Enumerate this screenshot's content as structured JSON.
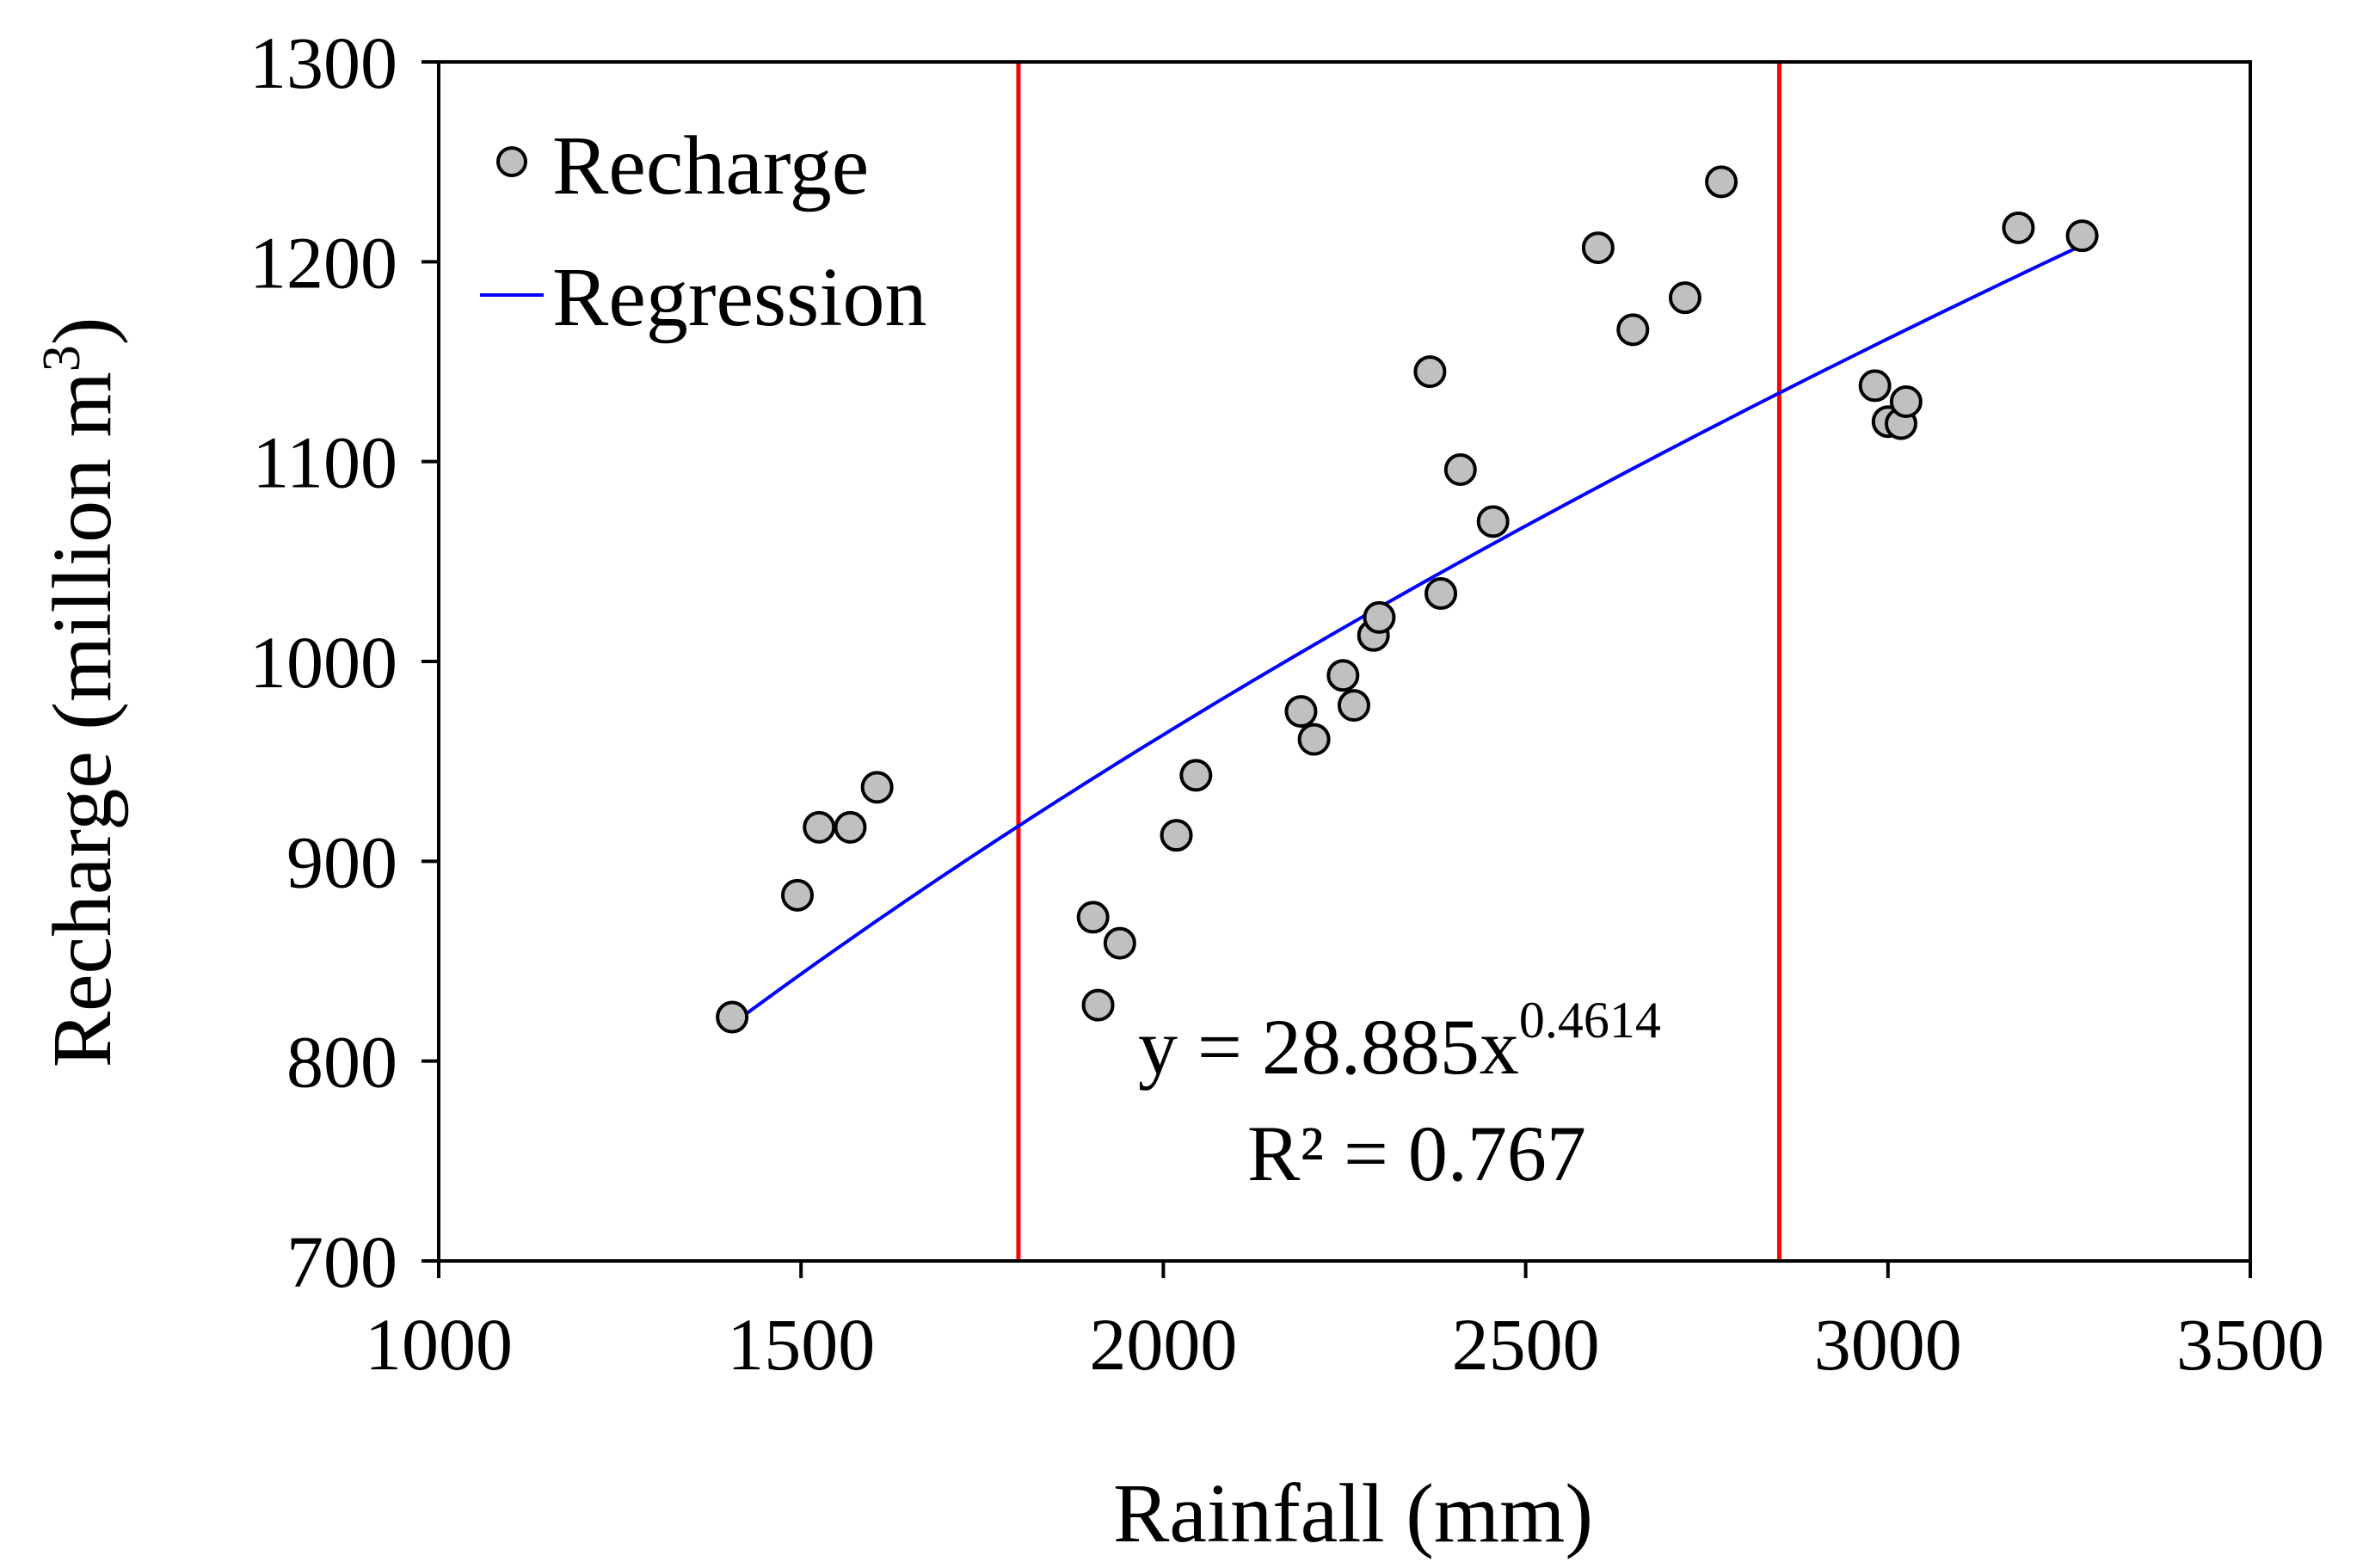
{
  "chart_data": {
    "type": "scatter",
    "title": "",
    "xlabel": "Rainfall (mm)",
    "ylabel_main": "Recharge (million m",
    "ylabel_sup": "3",
    "ylabel_close": ")",
    "xlim": [
      1000,
      3500
    ],
    "ylim": [
      700,
      1300
    ],
    "xticks": [
      1000,
      1500,
      2000,
      2500,
      3000,
      3500
    ],
    "yticks": [
      700,
      800,
      900,
      1000,
      1100,
      1200,
      1300
    ],
    "grid": false,
    "legend_position": "top-left",
    "series": [
      {
        "name": "Recharge",
        "kind": "scatter",
        "marker_color": "#c0c0c0",
        "points": [
          [
            1405,
            822
          ],
          [
            1495,
            883
          ],
          [
            1525,
            917
          ],
          [
            1568,
            917
          ],
          [
            1605,
            937
          ],
          [
            1903,
            872
          ],
          [
            1910,
            828
          ],
          [
            1940,
            859
          ],
          [
            2018,
            913
          ],
          [
            2045,
            943
          ],
          [
            2190,
            975
          ],
          [
            2208,
            961
          ],
          [
            2248,
            993
          ],
          [
            2263,
            978
          ],
          [
            2290,
            1013
          ],
          [
            2298,
            1022
          ],
          [
            2368,
            1145
          ],
          [
            2383,
            1034
          ],
          [
            2410,
            1096
          ],
          [
            2455,
            1070
          ],
          [
            2600,
            1207
          ],
          [
            2648,
            1166
          ],
          [
            2720,
            1182
          ],
          [
            2770,
            1240
          ],
          [
            2982,
            1138
          ],
          [
            3000,
            1120
          ],
          [
            3018,
            1119
          ],
          [
            3025,
            1130
          ],
          [
            3180,
            1217
          ],
          [
            3268,
            1213
          ]
        ]
      },
      {
        "name": "Regression",
        "kind": "power-fit",
        "line_color": "#0000ff",
        "coefficient": 28.885,
        "exponent": 0.4614,
        "x_range": [
          1410,
          3270
        ]
      }
    ],
    "vertical_lines": {
      "color": "#ff0000",
      "x": [
        1800,
        2850
      ]
    },
    "annotation": {
      "equation_prefix": "y = 28.885x",
      "equation_exponent": "0.4614",
      "r_squared": "R² = 0.767"
    }
  }
}
